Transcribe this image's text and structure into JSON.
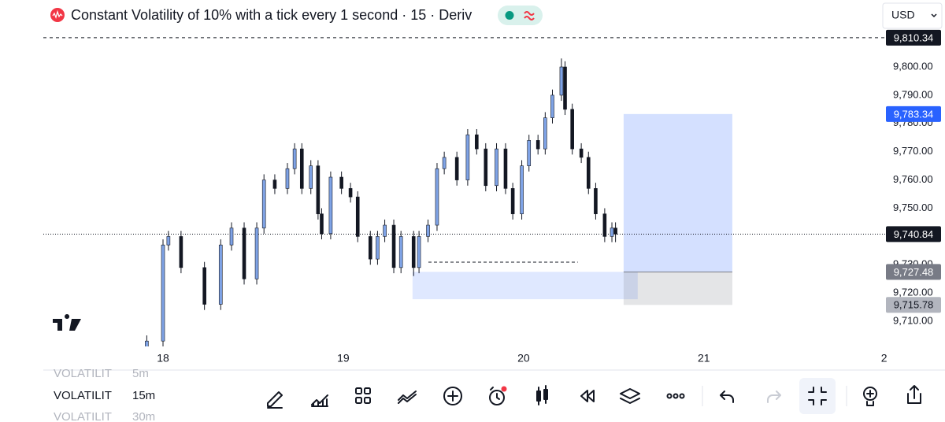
{
  "header": {
    "title": "Constant Volatility of 10% with a tick every 1 second · 15 · Deriv",
    "currency": "USD"
  },
  "chart_data": {
    "type": "candlestick",
    "x": [
      17.91,
      18.0,
      18.03,
      18.1,
      18.23,
      18.32,
      18.38,
      18.45,
      18.52,
      18.56,
      18.62,
      18.69,
      18.73,
      18.77,
      18.82,
      18.86,
      18.88,
      18.93,
      18.99,
      19.04,
      19.08,
      19.15,
      19.19,
      19.23,
      19.28,
      19.32,
      19.39,
      19.42,
      19.47,
      19.52,
      19.56,
      19.63,
      19.69,
      19.74,
      19.79,
      19.85,
      19.9,
      19.94,
      19.99,
      20.03,
      20.08,
      20.12,
      20.16,
      20.21,
      20.23,
      20.27,
      20.32,
      20.36,
      20.4,
      20.45,
      20.49,
      20.51
    ],
    "open": [
      9700,
      9703,
      9737,
      9740,
      9729,
      9716,
      9737,
      9743,
      9725,
      9743,
      9760,
      9757,
      9764,
      9771,
      9757,
      9765,
      9748,
      9741,
      9761,
      9757,
      9754,
      9740,
      9732,
      9740,
      9744,
      9729,
      9740,
      9729,
      9740,
      9744,
      9764,
      9768,
      9760,
      9776,
      9771,
      9758,
      9771,
      9757,
      9748,
      9765,
      9774,
      9771,
      9782,
      9790,
      9800,
      9785,
      9771,
      9768,
      9757,
      9748,
      9740,
      9743
    ],
    "high": [
      9705,
      9739,
      9742,
      9742,
      9731,
      9739,
      9745,
      9745,
      9745,
      9762,
      9762,
      9766,
      9773,
      9773,
      9767,
      9767,
      9750,
      9763,
      9763,
      9759,
      9756,
      9742,
      9742,
      9746,
      9746,
      9742,
      9742,
      9742,
      9746,
      9766,
      9770,
      9770,
      9778,
      9778,
      9773,
      9773,
      9773,
      9759,
      9767,
      9776,
      9776,
      9784,
      9792,
      9803,
      9802,
      9787,
      9773,
      9770,
      9759,
      9750,
      9745,
      9745
    ],
    "low": [
      9701,
      9701,
      9735,
      9727,
      9714,
      9714,
      9735,
      9723,
      9723,
      9741,
      9755,
      9755,
      9762,
      9755,
      9755,
      9746,
      9739,
      9739,
      9755,
      9752,
      9738,
      9730,
      9730,
      9738,
      9727,
      9727,
      9726,
      9727,
      9738,
      9742,
      9762,
      9758,
      9758,
      9769,
      9756,
      9756,
      9755,
      9746,
      9746,
      9763,
      9769,
      9769,
      9780,
      9788,
      9783,
      9769,
      9766,
      9755,
      9746,
      9738,
      9738,
      9738
    ],
    "close": [
      9703,
      9737,
      9740,
      9729,
      9716,
      9737,
      9743,
      9725,
      9743,
      9760,
      9757,
      9764,
      9771,
      9757,
      9765,
      9748,
      9741,
      9761,
      9757,
      9754,
      9740,
      9732,
      9740,
      9744,
      9729,
      9740,
      9729,
      9740,
      9744,
      9764,
      9768,
      9760,
      9776,
      9771,
      9758,
      9771,
      9757,
      9748,
      9765,
      9774,
      9771,
      9782,
      9790,
      9800,
      9785,
      9771,
      9768,
      9757,
      9748,
      9740,
      9743,
      9740.84
    ],
    "up_color": "#7fa3e6",
    "down_color": "#131722",
    "xlim": [
      17.336,
      22.01
    ],
    "ylim": [
      9701.1,
      9813.1
    ],
    "xticks": [
      18,
      19,
      20,
      21,
      {
        "value": 22,
        "label": "2"
      }
    ],
    "yticks": [
      {
        "value": 9710,
        "label": "9,710.00"
      },
      {
        "value": 9720,
        "label": "9,720.00"
      },
      {
        "value": 9730,
        "label": "9,730.00"
      },
      {
        "value": 9740,
        "label": "9,740.00"
      },
      {
        "value": 9750,
        "label": "9,750.00"
      },
      {
        "value": 9760,
        "label": "9,760.00"
      },
      {
        "value": 9770,
        "label": "9,770.00"
      },
      {
        "value": 9780,
        "label": "9,780.00"
      },
      {
        "value": 9790,
        "label": "9,790.00"
      },
      {
        "value": 9800,
        "label": "9,800.00"
      }
    ],
    "high_line": {
      "value": 9810.34,
      "label": "9,810.34"
    },
    "last_price": {
      "value": 9740.84,
      "label": "9,740.84"
    },
    "position": {
      "x": [
        20.555,
        21.158
      ],
      "target": {
        "value": 9783.34,
        "label": "9,783.34"
      },
      "entry": {
        "value": 9727.48,
        "label": "9,727.48"
      },
      "stop": {
        "value": 9715.78,
        "label": "9,715.78"
      }
    },
    "zone": {
      "x": [
        19.384,
        20.633
      ],
      "y": [
        9717.8,
        9727.5
      ]
    },
    "level_line": {
      "x": [
        19.472,
        20.301
      ],
      "value": 9730.9
    }
  },
  "interval_picker": {
    "items": [
      {
        "name": "VOLATILIT",
        "interval": "5m"
      },
      {
        "name": "VOLATILIT",
        "interval": "15m"
      },
      {
        "name": "VOLATILIT",
        "interval": "30m"
      }
    ]
  }
}
